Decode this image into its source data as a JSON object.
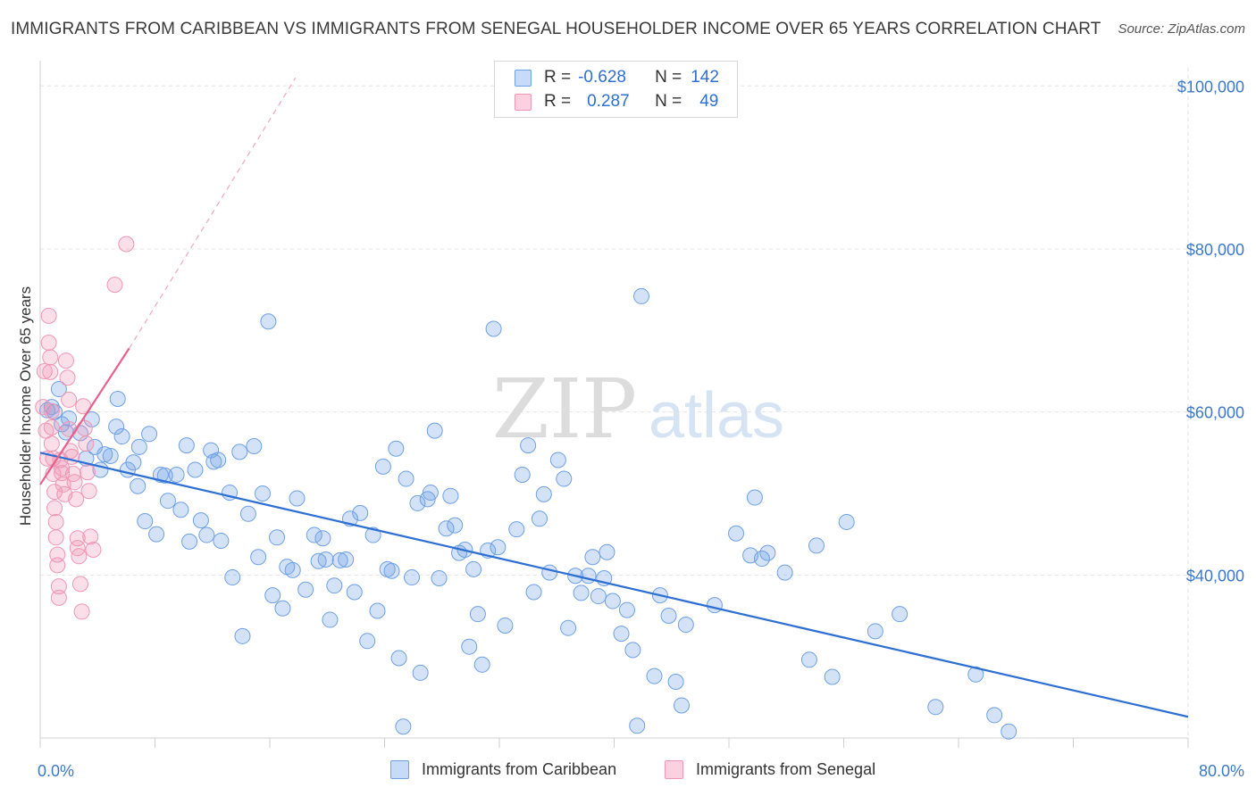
{
  "title": "IMMIGRANTS FROM CARIBBEAN VS IMMIGRANTS FROM SENEGAL HOUSEHOLDER INCOME OVER 65 YEARS CORRELATION CHART",
  "source": "Source: ZipAtlas.com",
  "watermark": {
    "zip": "ZIP",
    "atlas": "atlas"
  },
  "legend": {
    "rows": [
      {
        "r_label": "R =",
        "r_value": "-0.628",
        "n_label": "N =",
        "n_value": "142",
        "color": "#6ea0e6"
      },
      {
        "r_label": "R =",
        "r_value": "0.287",
        "n_label": "N =",
        "n_value": "49",
        "color": "#f096b4"
      }
    ]
  },
  "colors": {
    "caribbean": "#6ea0e6",
    "caribbean_line": "#2e6fd4",
    "senegal": "#f096b4",
    "senegal_line": "#e8608c",
    "tick": "#3b78c9"
  },
  "chart_data": {
    "type": "scatter",
    "title": "IMMIGRANTS FROM CARIBBEAN VS IMMIGRANTS FROM SENEGAL HOUSEHOLDER INCOME OVER 65 YEARS CORRELATION CHART",
    "xlabel": "",
    "ylabel": "Householder Income Over 65 years",
    "xlim": [
      0,
      80
    ],
    "ylim": [
      20000,
      102000
    ],
    "x_tick_labels": [
      "0.0%",
      "80.0%"
    ],
    "y_ticks": [
      40000,
      60000,
      80000,
      100000
    ],
    "y_tick_labels": [
      "$40,000",
      "$60,000",
      "$80,000",
      "$100,000"
    ],
    "grid": true,
    "legend_position": "top-center",
    "series": [
      {
        "name": "Immigrants from Caribbean",
        "color": "#6ea0e6",
        "trend": {
          "x": [
            0,
            80
          ],
          "y": [
            55000,
            22600
          ]
        },
        "points": [
          [
            0.5,
            60200
          ],
          [
            0.8,
            60600
          ],
          [
            1.0,
            60000
          ],
          [
            1.3,
            62800
          ],
          [
            1.5,
            58500
          ],
          [
            2.0,
            59200
          ],
          [
            1.8,
            57500
          ],
          [
            2.8,
            57400
          ],
          [
            3.2,
            54300
          ],
          [
            3.6,
            59100
          ],
          [
            3.8,
            55700
          ],
          [
            4.2,
            52900
          ],
          [
            4.5,
            54800
          ],
          [
            4.9,
            54600
          ],
          [
            5.4,
            61600
          ],
          [
            5.3,
            58200
          ],
          [
            5.7,
            57000
          ],
          [
            6.1,
            52900
          ],
          [
            6.5,
            53800
          ],
          [
            6.8,
            50900
          ],
          [
            6.9,
            55700
          ],
          [
            7.3,
            46600
          ],
          [
            7.6,
            57300
          ],
          [
            8.1,
            45000
          ],
          [
            8.4,
            52300
          ],
          [
            8.7,
            52200
          ],
          [
            8.9,
            49100
          ],
          [
            9.5,
            52300
          ],
          [
            9.8,
            48000
          ],
          [
            10.2,
            55900
          ],
          [
            10.4,
            44100
          ],
          [
            10.8,
            52900
          ],
          [
            11.2,
            46700
          ],
          [
            11.6,
            44900
          ],
          [
            11.9,
            55300
          ],
          [
            12.1,
            53900
          ],
          [
            12.4,
            54100
          ],
          [
            12.6,
            44200
          ],
          [
            13.2,
            50100
          ],
          [
            13.4,
            39700
          ],
          [
            13.9,
            55100
          ],
          [
            14.1,
            32500
          ],
          [
            14.5,
            47500
          ],
          [
            14.9,
            55800
          ],
          [
            15.2,
            42200
          ],
          [
            15.5,
            50000
          ],
          [
            15.9,
            71100
          ],
          [
            16.2,
            37500
          ],
          [
            16.5,
            44600
          ],
          [
            16.9,
            35900
          ],
          [
            17.2,
            41000
          ],
          [
            17.6,
            40600
          ],
          [
            17.9,
            49400
          ],
          [
            18.5,
            38200
          ],
          [
            19.1,
            44900
          ],
          [
            19.4,
            41700
          ],
          [
            19.7,
            44500
          ],
          [
            19.9,
            41900
          ],
          [
            20.2,
            34500
          ],
          [
            20.5,
            38700
          ],
          [
            20.9,
            41800
          ],
          [
            21.3,
            41900
          ],
          [
            21.6,
            46900
          ],
          [
            21.9,
            37900
          ],
          [
            22.3,
            47600
          ],
          [
            22.8,
            31900
          ],
          [
            23.2,
            44900
          ],
          [
            23.5,
            35600
          ],
          [
            23.9,
            53300
          ],
          [
            24.2,
            40700
          ],
          [
            24.5,
            40500
          ],
          [
            24.8,
            55500
          ],
          [
            25.0,
            29800
          ],
          [
            25.5,
            51800
          ],
          [
            25.9,
            39700
          ],
          [
            26.3,
            48800
          ],
          [
            26.5,
            28000
          ],
          [
            27.0,
            49300
          ],
          [
            27.2,
            50100
          ],
          [
            27.5,
            57700
          ],
          [
            27.8,
            39600
          ],
          [
            28.3,
            45700
          ],
          [
            28.6,
            49700
          ],
          [
            28.9,
            46100
          ],
          [
            29.2,
            42700
          ],
          [
            29.6,
            43100
          ],
          [
            29.9,
            31200
          ],
          [
            30.2,
            40700
          ],
          [
            30.5,
            35200
          ],
          [
            30.8,
            29000
          ],
          [
            31.2,
            43000
          ],
          [
            31.6,
            70200
          ],
          [
            31.9,
            43400
          ],
          [
            32.4,
            33800
          ],
          [
            33.2,
            45600
          ],
          [
            33.6,
            52300
          ],
          [
            34.0,
            55900
          ],
          [
            34.4,
            37900
          ],
          [
            34.8,
            46900
          ],
          [
            35.1,
            49900
          ],
          [
            35.5,
            40300
          ],
          [
            36.1,
            54100
          ],
          [
            36.5,
            51800
          ],
          [
            36.8,
            33500
          ],
          [
            37.3,
            39900
          ],
          [
            37.7,
            37800
          ],
          [
            38.2,
            39900
          ],
          [
            38.5,
            42200
          ],
          [
            38.9,
            37400
          ],
          [
            39.3,
            39600
          ],
          [
            39.5,
            42800
          ],
          [
            39.9,
            36800
          ],
          [
            40.5,
            32800
          ],
          [
            40.9,
            35700
          ],
          [
            41.3,
            30800
          ],
          [
            41.6,
            21500
          ],
          [
            41.9,
            74200
          ],
          [
            42.8,
            27600
          ],
          [
            43.2,
            37500
          ],
          [
            43.8,
            35000
          ],
          [
            44.3,
            26900
          ],
          [
            44.7,
            24000
          ],
          [
            45.0,
            33900
          ],
          [
            47.0,
            36300
          ],
          [
            48.5,
            45100
          ],
          [
            49.5,
            42400
          ],
          [
            49.8,
            49500
          ],
          [
            50.3,
            42000
          ],
          [
            50.7,
            42700
          ],
          [
            51.9,
            40300
          ],
          [
            53.6,
            29600
          ],
          [
            54.1,
            43600
          ],
          [
            55.2,
            27500
          ],
          [
            56.2,
            46500
          ],
          [
            58.2,
            33100
          ],
          [
            59.9,
            35200
          ],
          [
            62.4,
            23800
          ],
          [
            65.2,
            27800
          ],
          [
            66.5,
            22800
          ],
          [
            67.5,
            20800
          ],
          [
            25.3,
            21400
          ]
        ]
      },
      {
        "name": "Immigrants from Senegal",
        "color": "#f096b4",
        "trend": {
          "x": [
            0,
            6.2
          ],
          "y": [
            51100,
            67800
          ]
        },
        "trend_extension": {
          "x": [
            6.2,
            17.8
          ],
          "y": [
            67800,
            101000
          ]
        },
        "points": [
          [
            0.2,
            60600
          ],
          [
            0.3,
            65000
          ],
          [
            0.4,
            57700
          ],
          [
            0.5,
            54300
          ],
          [
            0.6,
            71800
          ],
          [
            0.6,
            68500
          ],
          [
            0.7,
            66700
          ],
          [
            0.7,
            64900
          ],
          [
            0.8,
            60100
          ],
          [
            0.8,
            58100
          ],
          [
            0.8,
            56100
          ],
          [
            0.9,
            54300
          ],
          [
            0.9,
            52400
          ],
          [
            1.0,
            50200
          ],
          [
            1.0,
            48200
          ],
          [
            1.1,
            46500
          ],
          [
            1.1,
            44600
          ],
          [
            1.2,
            42500
          ],
          [
            1.2,
            41200
          ],
          [
            1.3,
            38600
          ],
          [
            1.3,
            37200
          ],
          [
            1.4,
            54100
          ],
          [
            1.5,
            53100
          ],
          [
            1.5,
            52500
          ],
          [
            1.6,
            51100
          ],
          [
            1.7,
            49900
          ],
          [
            1.8,
            66300
          ],
          [
            1.9,
            64200
          ],
          [
            2.0,
            61500
          ],
          [
            2.0,
            57900
          ],
          [
            2.1,
            55200
          ],
          [
            2.2,
            54500
          ],
          [
            2.3,
            52400
          ],
          [
            2.4,
            51400
          ],
          [
            2.5,
            49300
          ],
          [
            2.6,
            44500
          ],
          [
            2.6,
            43300
          ],
          [
            2.7,
            42300
          ],
          [
            2.8,
            38900
          ],
          [
            2.9,
            35500
          ],
          [
            3.0,
            60700
          ],
          [
            3.1,
            58000
          ],
          [
            3.2,
            56100
          ],
          [
            3.3,
            52600
          ],
          [
            3.4,
            50300
          ],
          [
            3.5,
            44700
          ],
          [
            3.7,
            43100
          ],
          [
            5.2,
            75600
          ],
          [
            6.0,
            80600
          ]
        ]
      }
    ]
  },
  "bottom_legend": [
    {
      "label": "Immigrants from Caribbean",
      "color": "#6ea0e6"
    },
    {
      "label": "Immigrants from Senegal",
      "color": "#f096b4"
    }
  ]
}
